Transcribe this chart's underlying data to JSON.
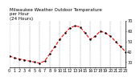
{
  "title": "Milwaukee Weather Outdoor Temperature\nper Hour\n(24 Hours)",
  "hours": [
    0,
    1,
    2,
    3,
    4,
    5,
    6,
    7,
    8,
    9,
    10,
    11,
    12,
    13,
    14,
    15,
    16,
    17,
    18,
    19,
    20,
    21,
    22,
    23
  ],
  "temps": [
    36,
    34,
    33,
    32,
    31,
    30,
    29,
    31,
    38,
    45,
    52,
    58,
    63,
    65,
    64,
    58,
    52,
    55,
    60,
    58,
    55,
    50,
    45,
    40
  ],
  "line_color": "#ff0000",
  "marker_color": "#000000",
  "bg_color": "#ffffff",
  "grid_color": "#888888",
  "ylim": [
    25,
    70
  ],
  "xlim": [
    0,
    23
  ],
  "yticks": [
    30,
    40,
    50,
    60,
    70
  ],
  "xticks": [
    0,
    1,
    2,
    3,
    4,
    5,
    6,
    7,
    8,
    9,
    10,
    11,
    12,
    13,
    14,
    15,
    16,
    17,
    18,
    19,
    20,
    21,
    22,
    23
  ],
  "xtick_labels": [
    "0",
    "1",
    "2",
    "3",
    "4",
    "5",
    "6",
    "7",
    "8",
    "9",
    "10",
    "11",
    "12",
    "13",
    "14",
    "15",
    "16",
    "17",
    "18",
    "19",
    "20",
    "21",
    "22",
    "23"
  ],
  "ytick_labels": [
    "30",
    "40",
    "50",
    "60",
    "70"
  ],
  "title_fontsize": 4.0,
  "tick_fontsize": 3.5,
  "line_width": 0.8,
  "marker_size": 1.5
}
